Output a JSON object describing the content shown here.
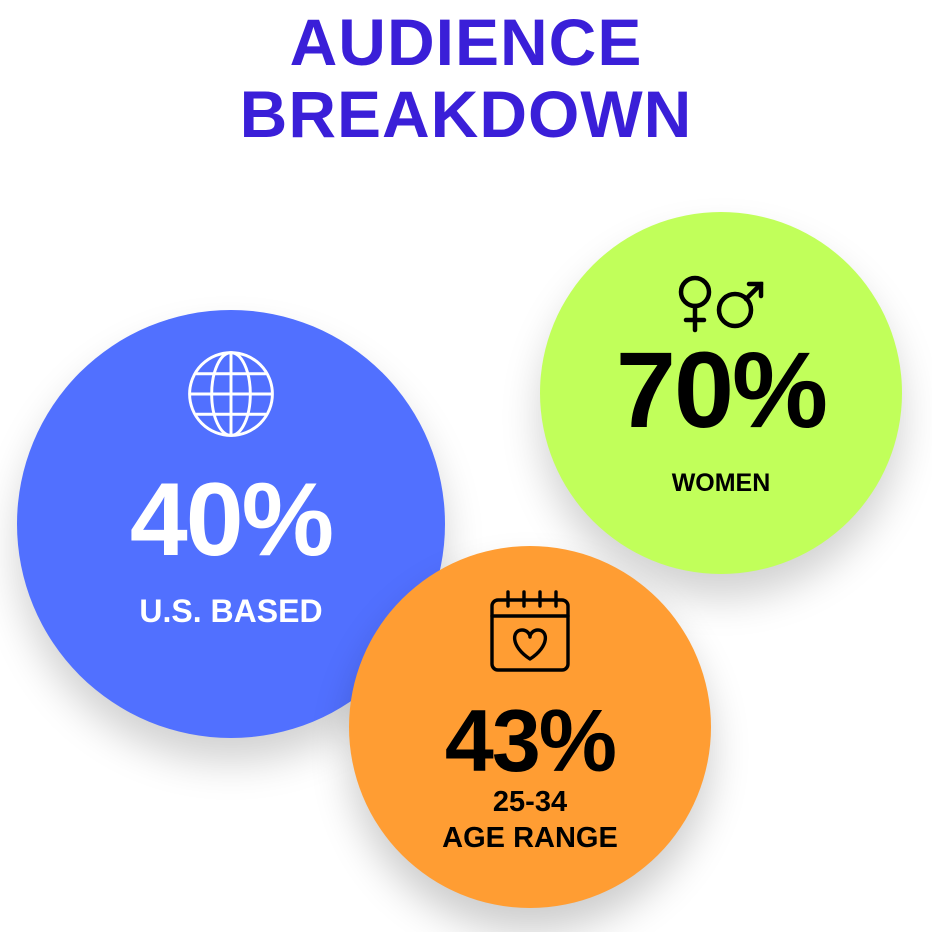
{
  "title": {
    "line1": "AUDIENCE",
    "line2": "BREAKDOWN",
    "color": "#3a1fd8"
  },
  "stats": [
    {
      "id": "us",
      "percent": "40%",
      "label": "U.S. BASED",
      "icon": "globe-icon",
      "bg_color": "#5170ff",
      "text_color": "#ffffff"
    },
    {
      "id": "women",
      "percent": "70%",
      "label": "WOMEN",
      "icon": "gender-symbols-icon",
      "bg_color": "#c1ff5a",
      "text_color": "#000000"
    },
    {
      "id": "age",
      "percent": "43%",
      "label_line1": "25-34",
      "label_line2": "AGE RANGE",
      "icon": "calendar-heart-icon",
      "bg_color": "#ff9d33",
      "text_color": "#000000"
    }
  ],
  "chart_data": {
    "type": "table",
    "title": "AUDIENCE BREAKDOWN",
    "categories": [
      "U.S. BASED",
      "WOMEN",
      "25-34 AGE RANGE"
    ],
    "values": [
      40,
      70,
      43
    ],
    "unit": "%"
  }
}
